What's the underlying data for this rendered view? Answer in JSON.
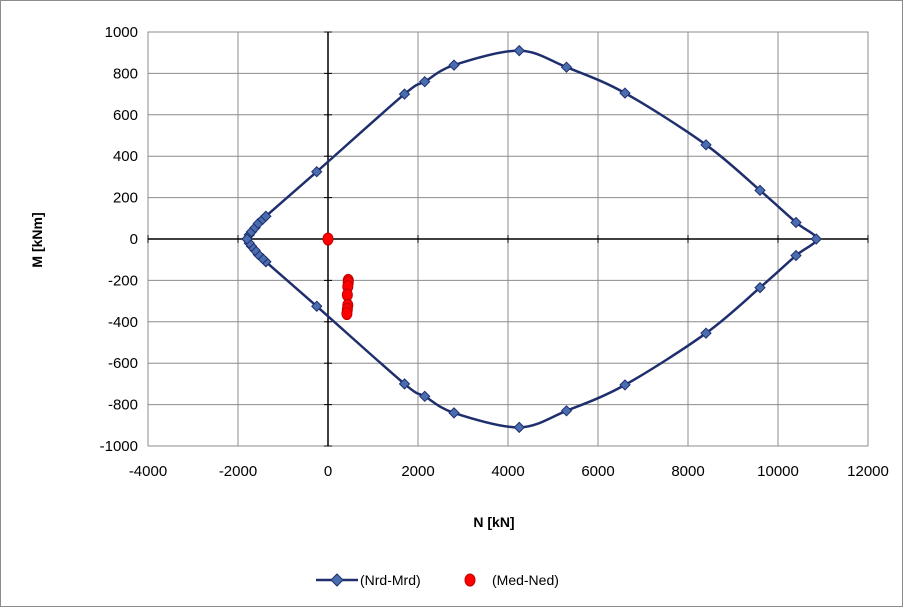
{
  "chart_data": {
    "type": "scatter",
    "xlabel": "N [kN]",
    "ylabel": "M [kNm]",
    "xlim": [
      -4000,
      12000
    ],
    "ylim": [
      -1000,
      1000
    ],
    "xticks": [
      -4000,
      -2000,
      0,
      2000,
      4000,
      6000,
      8000,
      10000,
      12000
    ],
    "yticks": [
      -1000,
      -800,
      -600,
      -400,
      -200,
      0,
      200,
      400,
      600,
      800,
      1000
    ],
    "xtick_labels": [
      "-4000",
      "-2000",
      "0",
      "2000",
      "4000",
      "6000",
      "8000",
      "10000",
      "12000"
    ],
    "ytick_labels": [
      "-1000",
      "-800",
      "-600",
      "-400",
      "-200",
      "0",
      "200",
      "400",
      "600",
      "800",
      "1000"
    ],
    "grid": true,
    "legend_position": "bottom",
    "series": [
      {
        "name": "(Nrd-Mrd)",
        "style": "line-with-diamond-markers",
        "color": "#1f2f6e",
        "marker_color": "#4a6db0",
        "points": [
          [
            -1800,
            0
          ],
          [
            -1750,
            20
          ],
          [
            -1700,
            35
          ],
          [
            -1620,
            55
          ],
          [
            -1550,
            75
          ],
          [
            -1450,
            95
          ],
          [
            -1380,
            110
          ],
          [
            -250,
            325
          ],
          [
            1700,
            700
          ],
          [
            2150,
            760
          ],
          [
            2800,
            840
          ],
          [
            4250,
            910
          ],
          [
            5300,
            830
          ],
          [
            6600,
            705
          ],
          [
            8400,
            455
          ],
          [
            9600,
            235
          ],
          [
            10400,
            80
          ],
          [
            10850,
            0
          ],
          [
            10400,
            -80
          ],
          [
            9600,
            -235
          ],
          [
            8400,
            -455
          ],
          [
            6600,
            -705
          ],
          [
            5300,
            -830
          ],
          [
            4250,
            -910
          ],
          [
            2800,
            -840
          ],
          [
            2150,
            -760
          ],
          [
            1700,
            -700
          ],
          [
            -250,
            -325
          ],
          [
            -1380,
            -110
          ],
          [
            -1450,
            -95
          ],
          [
            -1550,
            -75
          ],
          [
            -1620,
            -55
          ],
          [
            -1700,
            -35
          ],
          [
            -1750,
            -20
          ],
          [
            -1800,
            0
          ]
        ]
      },
      {
        "name": "(Med-Ned)",
        "style": "markers-only",
        "color": "#ff0000",
        "points": [
          [
            0,
            0
          ],
          [
            450,
            -200
          ],
          [
            450,
            -210
          ],
          [
            440,
            -230
          ],
          [
            430,
            -270
          ],
          [
            440,
            -320
          ],
          [
            430,
            -340
          ],
          [
            420,
            -360
          ]
        ]
      }
    ]
  }
}
